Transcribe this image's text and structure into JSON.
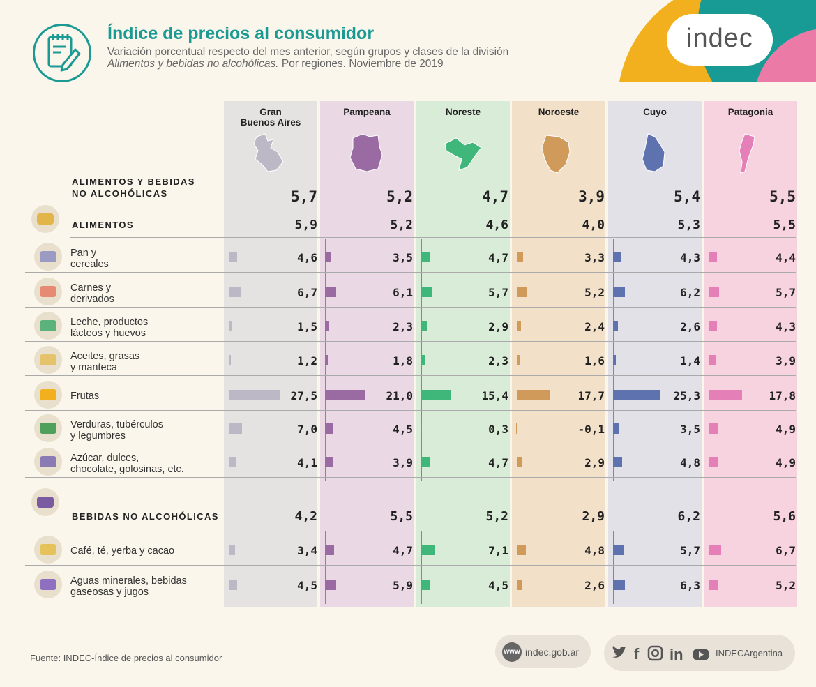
{
  "header": {
    "title": "Índice de precios al consumidor",
    "subtitle_line1": "Variación porcentual respecto del mes anterior, según grupos y clases de la división",
    "subtitle_line2_italic": "Alimentos y bebidas no alcohólicas.",
    "subtitle_line2_rest": " Por regiones. Noviembre de 2019",
    "brand": "indec"
  },
  "colors": {
    "teal": "#1a9a93",
    "regions": [
      "#bdb8c5",
      "#9a6aa3",
      "#3fb67a",
      "#cf9a5a",
      "#5f72b0",
      "#e57fb8"
    ],
    "region_backgrounds": [
      "#e5e2e2",
      "#ead9e4",
      "#d9ecd8",
      "#f2e0c9",
      "#e3e1e8",
      "#f7d3df"
    ]
  },
  "chart_data": {
    "type": "bar",
    "regions": [
      "Gran\nBuenos Aires",
      "Pampeana",
      "Noreste",
      "Noroeste",
      "Cuyo",
      "Patagonia"
    ],
    "total": {
      "label_line1": "ALIMENTOS Y BEBIDAS",
      "label_line2": "NO ALCOHÓLICAS",
      "values": [
        "5,7",
        "5,2",
        "4,7",
        "3,9",
        "5,4",
        "5,5"
      ]
    },
    "groups": [
      {
        "label": "ALIMENTOS",
        "icon": "chicken-icon",
        "values": [
          "5,9",
          "5,2",
          "4,6",
          "4,0",
          "5,3",
          "5,5"
        ],
        "items": [
          {
            "label": [
              "Pan y",
              "cereales"
            ],
            "icon": "bread-icon",
            "values": [
              4.6,
              3.5,
              4.7,
              3.3,
              4.3,
              4.4
            ]
          },
          {
            "label": [
              "Carnes y",
              "derivados"
            ],
            "icon": "meat-icon",
            "values": [
              6.7,
              6.1,
              5.7,
              5.2,
              6.2,
              5.7
            ]
          },
          {
            "label": [
              "Leche, productos",
              "lácteos y huevos"
            ],
            "icon": "milk-icon",
            "values": [
              1.5,
              2.3,
              2.9,
              2.4,
              2.6,
              4.3
            ]
          },
          {
            "label": [
              "Aceites, grasas",
              "y manteca"
            ],
            "icon": "oil-icon",
            "values": [
              1.2,
              1.8,
              2.3,
              1.6,
              1.4,
              3.9
            ]
          },
          {
            "label": [
              "Frutas"
            ],
            "icon": "banana-icon",
            "values": [
              27.5,
              21.0,
              15.4,
              17.7,
              25.3,
              17.8
            ]
          },
          {
            "label": [
              "Verduras, tubérculos",
              "y legumbres"
            ],
            "icon": "vegetables-icon",
            "values": [
              7.0,
              4.5,
              0.3,
              -0.1,
              3.5,
              4.9
            ]
          },
          {
            "label": [
              "Azúcar, dulces,",
              "chocolate, golosinas, etc."
            ],
            "icon": "candy-icon",
            "values": [
              4.1,
              3.9,
              4.7,
              2.9,
              4.8,
              4.9
            ]
          }
        ]
      },
      {
        "label": "BEBIDAS NO ALCOHÓLICAS",
        "icon": "bottles-icon",
        "values": [
          "4,2",
          "5,5",
          "5,2",
          "2,9",
          "6,2",
          "5,6"
        ],
        "items": [
          {
            "label": [
              "Café, té, yerba y cacao"
            ],
            "icon": "coffee-icon",
            "values": [
              3.4,
              4.7,
              7.1,
              4.8,
              5.7,
              6.7
            ]
          },
          {
            "label": [
              "Aguas minerales, bebidas",
              "gaseosas y jugos"
            ],
            "icon": "drinks-icon",
            "values": [
              4.5,
              5.9,
              4.5,
              2.6,
              6.3,
              5.2
            ]
          }
        ]
      }
    ]
  },
  "footer": {
    "source": "Fuente: INDEC-Índice de precios al consumidor",
    "website_badge": "www",
    "website": "indec.gob.ar",
    "social_handle": "INDECArgentina",
    "social_icons": [
      "twitter-icon",
      "facebook-icon",
      "instagram-icon",
      "linkedin-icon",
      "youtube-icon"
    ]
  }
}
